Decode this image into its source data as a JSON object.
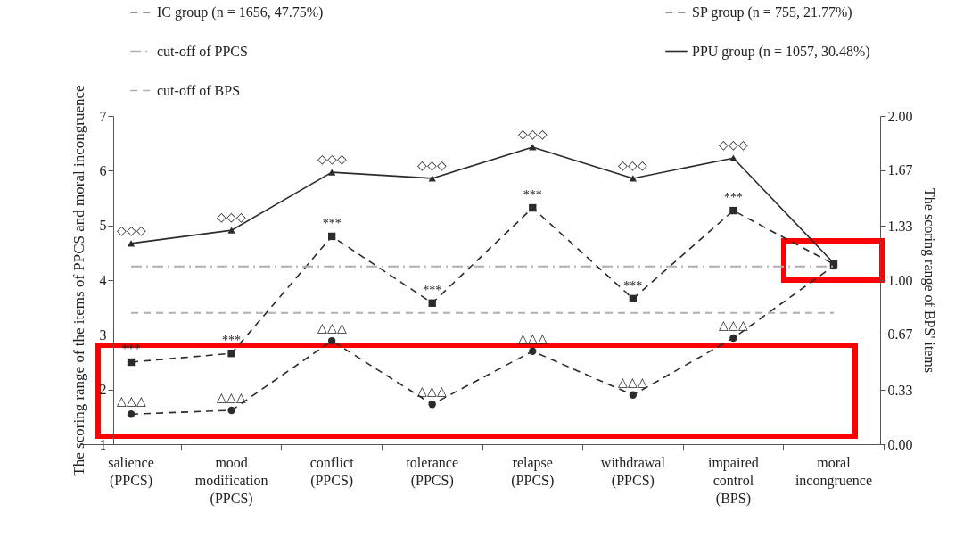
{
  "chart_data": {
    "type": "line",
    "ylabel": "The scoring range of the items of PPCS and moral incongruence",
    "y2label": "The scoring range of BPS' items",
    "categories": [
      "salience (PPCS)",
      "mood modification (PPCS)",
      "conflict (PPCS)",
      "tolerance (PPCS)",
      "relapse (PPCS)",
      "withdrawal (PPCS)",
      "impaired control (BPS)",
      "moral incongruence"
    ],
    "series": [
      {
        "name": "IC group (n = 1656, 47.75%)",
        "color": "#2b2b2b",
        "line_style": "dashed",
        "marker": "square",
        "values": [
          2.5,
          2.66,
          4.8,
          3.58,
          5.32,
          3.66,
          5.27,
          4.29
        ]
      },
      {
        "name": "SP group (n = 755, 21.77%)",
        "color": "#2b2b2b",
        "line_style": "dashed",
        "marker": "circle",
        "values": [
          1.55,
          1.62,
          2.89,
          1.73,
          2.7,
          1.9,
          2.94,
          4.26
        ]
      },
      {
        "name": "PPU group (n = 1057, 30.48%)",
        "color": "#2b2b2b",
        "line_style": "solid",
        "marker": "triangle",
        "values": [
          4.67,
          4.91,
          5.97,
          5.86,
          6.43,
          5.86,
          6.23,
          4.31
        ]
      }
    ],
    "ref_lines": [
      {
        "axis": "y",
        "value": 4.25,
        "label": "cut-off of PPCS",
        "color": "#b0b0b0",
        "line_style": "dashdot"
      },
      {
        "axis": "y2",
        "value": 0.8,
        "label": "cut-off of BPS",
        "color": "#b0b0b0",
        "line_style": "dashed"
      }
    ],
    "annotations": [
      {
        "text": "◇◇◇",
        "x": "salience (PPCS)",
        "y": 4.67
      },
      {
        "text": "◇◇◇",
        "x": "mood modification (PPCS)",
        "y": 4.91
      },
      {
        "text": "◇◇◇",
        "x": "conflict (PPCS)",
        "y": 5.97
      },
      {
        "text": "◇◇◇",
        "x": "tolerance (PPCS)",
        "y": 5.86
      },
      {
        "text": "◇◇◇",
        "x": "relapse (PPCS)",
        "y": 6.43
      },
      {
        "text": "◇◇◇",
        "x": "withdrawal (PPCS)",
        "y": 5.86
      },
      {
        "text": "◇◇◇",
        "x": "impaired control (BPS)",
        "y": 6.23
      },
      {
        "text": "***",
        "x": "salience (PPCS)",
        "y": 2.5
      },
      {
        "text": "***",
        "x": "mood modification (PPCS)",
        "y": 2.66
      },
      {
        "text": "***",
        "x": "conflict (PPCS)",
        "y": 4.8
      },
      {
        "text": "***",
        "x": "tolerance (PPCS)",
        "y": 3.58
      },
      {
        "text": "***",
        "x": "relapse (PPCS)",
        "y": 5.32
      },
      {
        "text": "***",
        "x": "withdrawal (PPCS)",
        "y": 3.66
      },
      {
        "text": "***",
        "x": "impaired control (BPS)",
        "y": 5.27
      },
      {
        "text": "△△△",
        "x": "salience (PPCS)",
        "y": 1.55
      },
      {
        "text": "△△△",
        "x": "mood modification (PPCS)",
        "y": 1.62
      },
      {
        "text": "△△△",
        "x": "conflict (PPCS)",
        "y": 2.89
      },
      {
        "text": "△△△",
        "x": "tolerance (PPCS)",
        "y": 1.73
      },
      {
        "text": "△△△",
        "x": "relapse (PPCS)",
        "y": 2.7
      },
      {
        "text": "△△△",
        "x": "withdrawal (PPCS)",
        "y": 1.9
      },
      {
        "text": "△△△",
        "x": "impaired control (BPS)",
        "y": 2.94
      }
    ],
    "ylim": [
      1,
      7
    ],
    "yticks": [
      1,
      2,
      3,
      4,
      5,
      6,
      7
    ],
    "y2lim": [
      0,
      2
    ],
    "y2ticks": [
      {
        "value": 0,
        "label": "0.00"
      },
      {
        "value": 0.33,
        "label": "0.33"
      },
      {
        "value": 0.67,
        "label": "0.67"
      },
      {
        "value": 1,
        "label": "1.00"
      },
      {
        "value": 1.33,
        "label": "1.33"
      },
      {
        "value": 1.67,
        "label": "1.67"
      },
      {
        "value": 2,
        "label": "2.00"
      }
    ],
    "grid": false,
    "legend": "top"
  }
}
